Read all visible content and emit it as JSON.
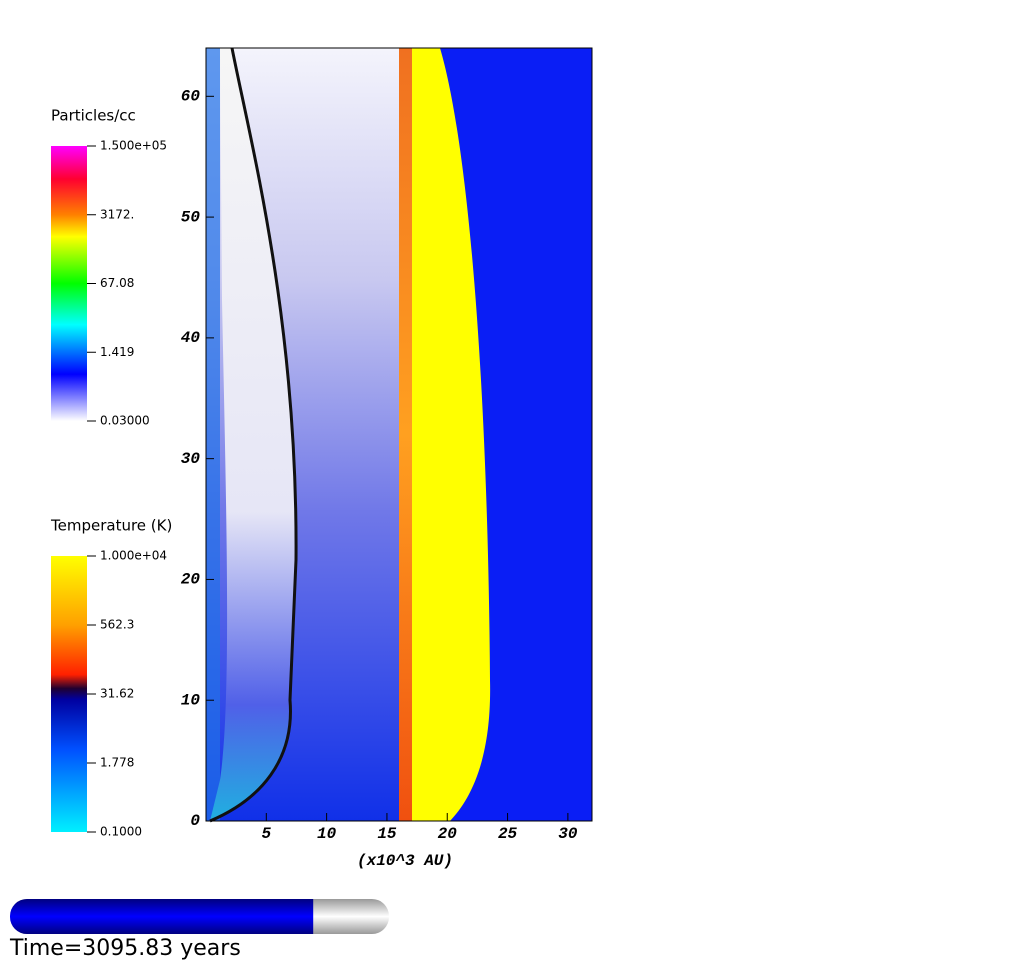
{
  "plot": {
    "type": "image",
    "x_label": "(x10^3 AU)",
    "xlim": [
      0,
      32
    ],
    "ylim": [
      0,
      64
    ],
    "xticks": [
      5,
      10,
      15,
      20,
      25,
      30
    ],
    "yticks": [
      0,
      10,
      20,
      30,
      40,
      50,
      60
    ]
  },
  "legends": [
    {
      "title": "Particles/cc",
      "labels": [
        "1.500e+05",
        "3172.",
        "67.08",
        "1.419",
        "0.03000"
      ]
    },
    {
      "title": "Temperature (K)",
      "labels": [
        "1.000e+04",
        "562.3",
        "31.62",
        "1.778",
        "0.1000"
      ]
    }
  ],
  "time": {
    "label": "Time=3095.83 years",
    "progress": 0.8
  }
}
